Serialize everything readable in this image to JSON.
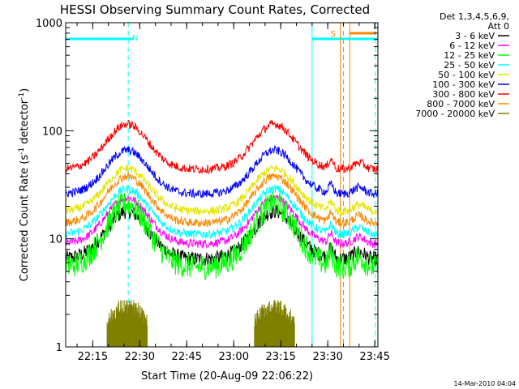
{
  "chart_data": {
    "type": "line",
    "title": "HESSI Observing Summary Count Rates, Corrected",
    "xlabel": "Start Time (20-Aug-09 22:06:22)",
    "ylabel": "Corrected Count Rate (s^-1 detector^-1)",
    "yscale": "log",
    "ylim": [
      1,
      1000
    ],
    "xlim": [
      "22:06:22",
      "23:46:00"
    ],
    "x_ticks": [
      "22:15",
      "22:30",
      "22:45",
      "23:00",
      "23:15",
      "23:30",
      "23:45"
    ],
    "y_ticks": [
      "1",
      "10",
      "100",
      "1000"
    ],
    "grid": false,
    "legend_placement": "right",
    "legend_header": [
      "Det 1,3,4,5,6,9,",
      "Att 0"
    ],
    "series": [
      {
        "name": "3 - 6 keV",
        "color": "#000000",
        "min": 6.5,
        "max": 18
      },
      {
        "name": "6 - 12 keV",
        "color": "#ff00ff",
        "min": 9,
        "max": 24
      },
      {
        "name": "12 - 25 keV",
        "color": "#00ff00",
        "min": 5.5,
        "max": 21
      },
      {
        "name": "25 - 50 keV",
        "color": "#00ffff",
        "min": 11,
        "max": 29
      },
      {
        "name": "50 - 100 keV",
        "color": "#e6e600",
        "min": 18,
        "max": 45
      },
      {
        "name": "100 - 300 keV",
        "color": "#0000ff",
        "min": 26,
        "max": 66
      },
      {
        "name": "300 - 800 keV",
        "color": "#ff0000",
        "min": 44,
        "max": 115
      },
      {
        "name": "800 - 7000 keV",
        "color": "#ff8800",
        "min": 14,
        "max": 38
      },
      {
        "name": "7000 - 20000 keV",
        "color": "#808000",
        "min": 1,
        "max": 2.7
      }
    ],
    "annotations": [
      {
        "label": "N",
        "type": "night",
        "color": "#00ffff"
      },
      {
        "label": "S",
        "type": "saa",
        "color": "#ff8800"
      }
    ],
    "timestamp": "14-Mar-2010 04:04"
  }
}
